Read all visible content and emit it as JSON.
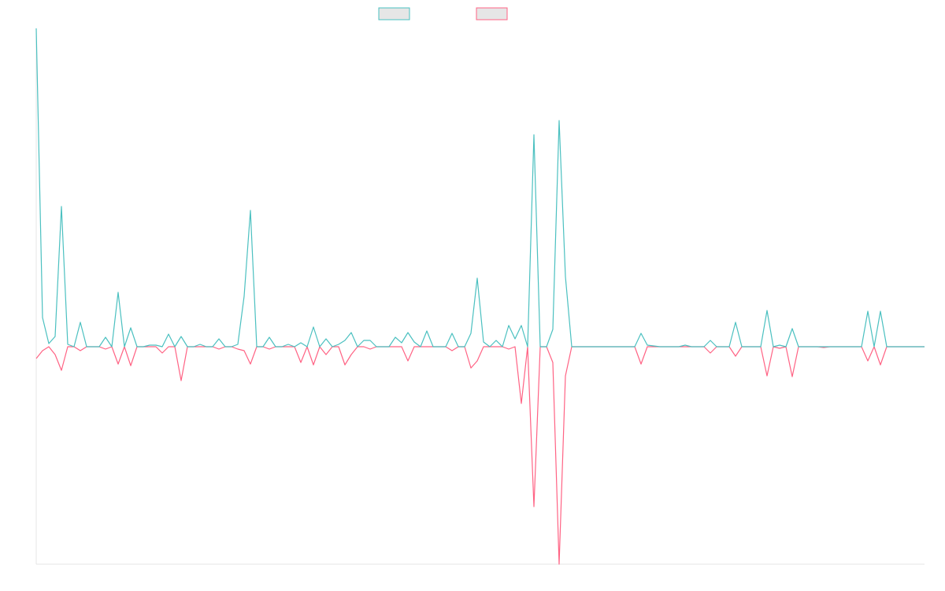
{
  "chart_data": {
    "type": "line",
    "categories": [
      null,
      null,
      null,
      null,
      null,
      null,
      null,
      null,
      null,
      null,
      null,
      null,
      null,
      null,
      null,
      null,
      null,
      null,
      null,
      null,
      null,
      null,
      null,
      null,
      null,
      null,
      null,
      null,
      null,
      null,
      null,
      null,
      null,
      null,
      null,
      null,
      null,
      null,
      null,
      null,
      null,
      null,
      null,
      null,
      null,
      null,
      null,
      null,
      null,
      null,
      null,
      null,
      null,
      null,
      null,
      null,
      null,
      null,
      null,
      null,
      null,
      null,
      null,
      null,
      null,
      null,
      null,
      null,
      null,
      null,
      null,
      null,
      null,
      null,
      null,
      null,
      null,
      null,
      null,
      null,
      null,
      null,
      null,
      null,
      null,
      null,
      null,
      null,
      null,
      null,
      null,
      null,
      null,
      null,
      null,
      null,
      null,
      null,
      null,
      null,
      null,
      null,
      null,
      null,
      null,
      null,
      null,
      null,
      null,
      null,
      null,
      null,
      null,
      null,
      null,
      null,
      null,
      null,
      null,
      null,
      null,
      null,
      null,
      null,
      null,
      null,
      null,
      null,
      null,
      null,
      null,
      null,
      null,
      null,
      null,
      null,
      null,
      null,
      null,
      null,
      null,
      null
    ],
    "series": [
      {
        "color": "#4bc0c0",
        "values": [
          404,
          37,
          4,
          13,
          178,
          3,
          0,
          31,
          0,
          0,
          0,
          12,
          0,
          69,
          0,
          24,
          0,
          0,
          2,
          2,
          0,
          16,
          0,
          13,
          0,
          0,
          3,
          0,
          0,
          10,
          0,
          0,
          3,
          64,
          173,
          0,
          0,
          12,
          0,
          0,
          3,
          0,
          5,
          0,
          25,
          0,
          10,
          0,
          3,
          8,
          18,
          0,
          8,
          8,
          0,
          0,
          0,
          12,
          5,
          18,
          6,
          0,
          20,
          0,
          0,
          0,
          17,
          0,
          0,
          17,
          87,
          6,
          0,
          8,
          0,
          27,
          10,
          27,
          0,
          269,
          0,
          0,
          22,
          287,
          89,
          0,
          0,
          0,
          0,
          0,
          0,
          0,
          0,
          0,
          0,
          0,
          17,
          2,
          1,
          0,
          0,
          0,
          0,
          2,
          0,
          0,
          0,
          8,
          0,
          0,
          0,
          31,
          0,
          0,
          0,
          0,
          46,
          0,
          2,
          0,
          23,
          0,
          0,
          0,
          0,
          0,
          0,
          0,
          0,
          0,
          0,
          0,
          45,
          0,
          45,
          0,
          0,
          0,
          0,
          0,
          0,
          0
        ]
      },
      {
        "color": "#ff6384",
        "values": [
          -15,
          -5,
          0,
          -10,
          -30,
          0,
          0,
          -5,
          0,
          0,
          0,
          -3,
          0,
          -22,
          0,
          -24,
          0,
          0,
          0,
          0,
          -8,
          0,
          0,
          -43,
          0,
          0,
          0,
          0,
          0,
          -3,
          0,
          0,
          -3,
          -5,
          -22,
          0,
          0,
          -3,
          0,
          0,
          0,
          0,
          -20,
          0,
          -23,
          0,
          -10,
          0,
          0,
          -23,
          -10,
          0,
          0,
          -3,
          0,
          0,
          0,
          0,
          0,
          -18,
          0,
          0,
          0,
          0,
          0,
          0,
          -5,
          0,
          0,
          -27,
          -18,
          0,
          0,
          0,
          0,
          -3,
          0,
          -72,
          0,
          -203,
          0,
          0,
          -20,
          -276,
          -37,
          0,
          0,
          0,
          0,
          0,
          0,
          0,
          0,
          0,
          0,
          0,
          -22,
          0,
          0,
          0,
          0,
          0,
          0,
          0,
          0,
          0,
          0,
          -8,
          0,
          0,
          0,
          -12,
          0,
          0,
          0,
          0,
          -37,
          0,
          -2,
          0,
          -38,
          0,
          0,
          0,
          0,
          -1,
          0,
          0,
          0,
          0,
          0,
          0,
          -18,
          0,
          -23,
          0,
          0,
          0,
          0,
          0,
          0,
          0
        ]
      }
    ],
    "ylim": [
      -276,
      404
    ]
  }
}
